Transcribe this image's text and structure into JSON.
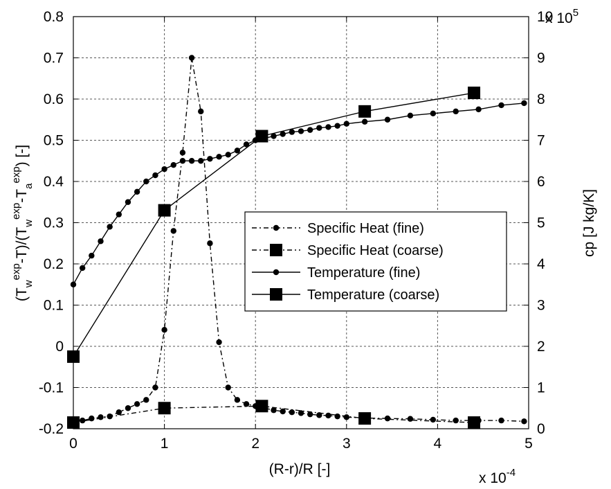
{
  "chart_data": {
    "type": "line",
    "title": "",
    "xlabel": "(R-r)/R [-]",
    "x_multiplier": "x 10",
    "x_multiplier_exp": "-4",
    "ylabel_left": {
      "p1": "(T",
      "p1_sub": "w",
      "p1_sup": "exp",
      "p2": "-T)/(T",
      "p2_sub": "w",
      "p2_sup": "exp",
      "p3": "-T",
      "p3_sub": "a",
      "p3_sup": "exp",
      "p4": ") [-]"
    },
    "ylabel_right": "cp [J kg/K]",
    "y_right_multiplier": "x 10",
    "y_right_multiplier_exp": "5",
    "xlim": [
      0,
      5
    ],
    "ylim_left": [
      -0.2,
      0.8
    ],
    "ylim_right": [
      0,
      10
    ],
    "x_ticks": [
      "0",
      "1",
      "2",
      "3",
      "4",
      "5"
    ],
    "y_left_ticks": [
      "-0.2",
      "-0.1",
      "0",
      "0.1",
      "0.2",
      "0.3",
      "0.4",
      "0.5",
      "0.6",
      "0.7",
      "0.8"
    ],
    "y_right_ticks": [
      "0",
      "1",
      "2",
      "3",
      "4",
      "5",
      "6",
      "7",
      "8",
      "9",
      "10"
    ],
    "grid": true,
    "legend_position": "center-right",
    "series": [
      {
        "name": "Specific Heat (fine)",
        "axis": "right",
        "line_style": "dashdot",
        "marker": "dot",
        "x": [
          0,
          0.1,
          0.2,
          0.3,
          0.4,
          0.5,
          0.6,
          0.7,
          0.8,
          0.9,
          1.0,
          1.1,
          1.2,
          1.3,
          1.4,
          1.5,
          1.6,
          1.7,
          1.8,
          1.9,
          2.0,
          2.1,
          2.2,
          2.3,
          2.4,
          2.5,
          2.6,
          2.7,
          2.8,
          2.9,
          3.0,
          3.2,
          3.45,
          3.7,
          3.95,
          4.2,
          4.45,
          4.7,
          4.95
        ],
        "y": [
          0.2,
          0.2,
          0.25,
          0.28,
          0.3,
          0.4,
          0.5,
          0.6,
          0.7,
          1.0,
          2.4,
          4.8,
          6.7,
          9.0,
          7.7,
          4.5,
          2.1,
          1.0,
          0.7,
          0.6,
          0.55,
          0.5,
          0.45,
          0.42,
          0.4,
          0.38,
          0.35,
          0.33,
          0.32,
          0.3,
          0.28,
          0.26,
          0.25,
          0.24,
          0.22,
          0.2,
          0.2,
          0.2,
          0.18
        ]
      },
      {
        "name": "Specific Heat (coarse)",
        "axis": "right",
        "line_style": "dashdot",
        "marker": "square",
        "x": [
          0,
          1.0,
          2.07,
          3.2,
          4.4
        ],
        "y": [
          0.15,
          0.5,
          0.55,
          0.25,
          0.15
        ]
      },
      {
        "name": "Temperature (fine)",
        "axis": "left",
        "line_style": "solid",
        "marker": "dot",
        "x": [
          0,
          0.1,
          0.2,
          0.3,
          0.4,
          0.5,
          0.6,
          0.7,
          0.8,
          0.9,
          1.0,
          1.1,
          1.2,
          1.3,
          1.4,
          1.5,
          1.6,
          1.7,
          1.8,
          1.9,
          2.0,
          2.1,
          2.2,
          2.3,
          2.4,
          2.5,
          2.6,
          2.7,
          2.8,
          2.9,
          3.0,
          3.2,
          3.45,
          3.7,
          3.95,
          4.2,
          4.45,
          4.7,
          4.95
        ],
        "y": [
          0.15,
          0.19,
          0.22,
          0.255,
          0.29,
          0.32,
          0.35,
          0.375,
          0.4,
          0.415,
          0.43,
          0.44,
          0.45,
          0.45,
          0.45,
          0.455,
          0.46,
          0.465,
          0.475,
          0.49,
          0.5,
          0.505,
          0.51,
          0.515,
          0.52,
          0.522,
          0.525,
          0.53,
          0.532,
          0.535,
          0.54,
          0.545,
          0.55,
          0.56,
          0.565,
          0.57,
          0.575,
          0.585,
          0.59
        ]
      },
      {
        "name": "Temperature (coarse)",
        "axis": "left",
        "line_style": "solid",
        "marker": "square",
        "x": [
          0,
          1.0,
          2.07,
          3.2,
          4.4
        ],
        "y": [
          -0.025,
          0.33,
          0.51,
          0.57,
          0.615
        ]
      }
    ]
  }
}
